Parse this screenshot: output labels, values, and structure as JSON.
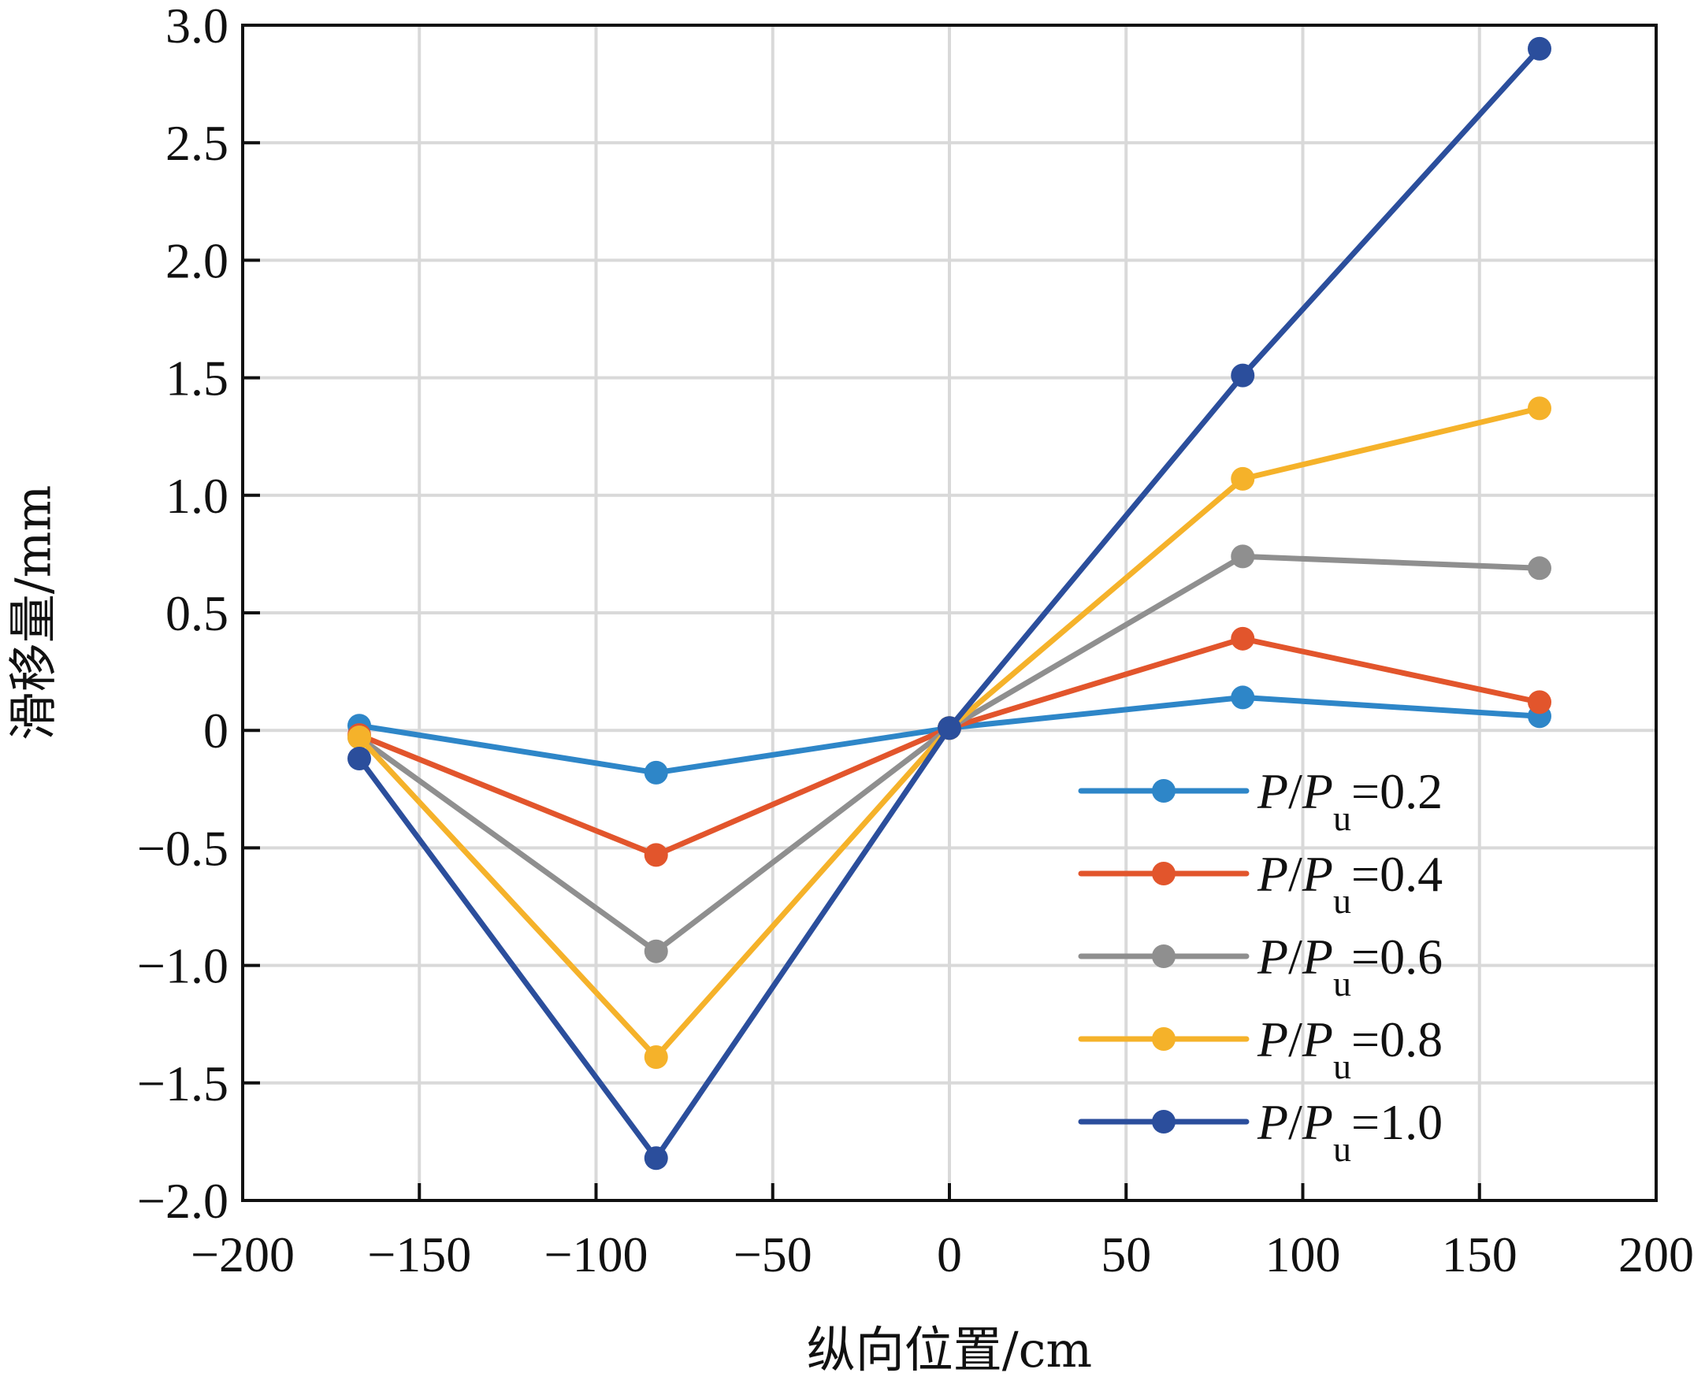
{
  "chart_data": {
    "type": "line",
    "title": "",
    "xlabel": "纵向位置/cm",
    "ylabel": "滑移量/mm",
    "xlim": [
      -200,
      200
    ],
    "ylim": [
      -2.0,
      3.0
    ],
    "xticks": [
      -200,
      -150,
      -100,
      -50,
      0,
      50,
      100,
      150,
      200
    ],
    "xtick_labels": [
      "−200",
      "−150",
      "−100",
      "−50",
      "0",
      "50",
      "100",
      "150",
      "200"
    ],
    "yticks": [
      3.0,
      2.5,
      2.0,
      1.5,
      1.0,
      0.5,
      0,
      -0.5,
      -1.0,
      -1.5,
      -2.0
    ],
    "ytick_labels": [
      "3.0",
      "2.5",
      "2.0",
      "1.5",
      "1.0",
      "0.5",
      "0",
      "−0.5",
      "−1.0",
      "−1.5",
      "−2.0"
    ],
    "grid": true,
    "legend_position": "lower-right",
    "x": [
      -167,
      -83,
      0,
      83,
      167
    ],
    "series": [
      {
        "name": "P/Pu=0.2",
        "label_parts": [
          "P",
          "/",
          "P",
          "u",
          "=0.2"
        ],
        "color": "#2e86c8",
        "values": [
          0.02,
          -0.18,
          0.01,
          0.14,
          0.06
        ]
      },
      {
        "name": "P/Pu=0.4",
        "label_parts": [
          "P",
          "/",
          "P",
          "u",
          "=0.4"
        ],
        "color": "#e2552c",
        "values": [
          -0.02,
          -0.53,
          0.01,
          0.39,
          0.12
        ]
      },
      {
        "name": "P/Pu=0.6",
        "label_parts": [
          "P",
          "/",
          "P",
          "u",
          "=0.6"
        ],
        "color": "#8f8f8f",
        "values": [
          -0.03,
          -0.94,
          0.01,
          0.74,
          0.69
        ]
      },
      {
        "name": "P/Pu=0.8",
        "label_parts": [
          "P",
          "/",
          "P",
          "u",
          "=0.8"
        ],
        "color": "#f5b22a",
        "values": [
          -0.03,
          -1.39,
          0.01,
          1.07,
          1.37
        ]
      },
      {
        "name": "P/Pu=1.0",
        "label_parts": [
          "P",
          "/",
          "P",
          "u",
          "=1.0"
        ],
        "color": "#2b4e9c",
        "values": [
          -0.12,
          -1.82,
          0.01,
          1.51,
          2.9
        ]
      }
    ]
  }
}
